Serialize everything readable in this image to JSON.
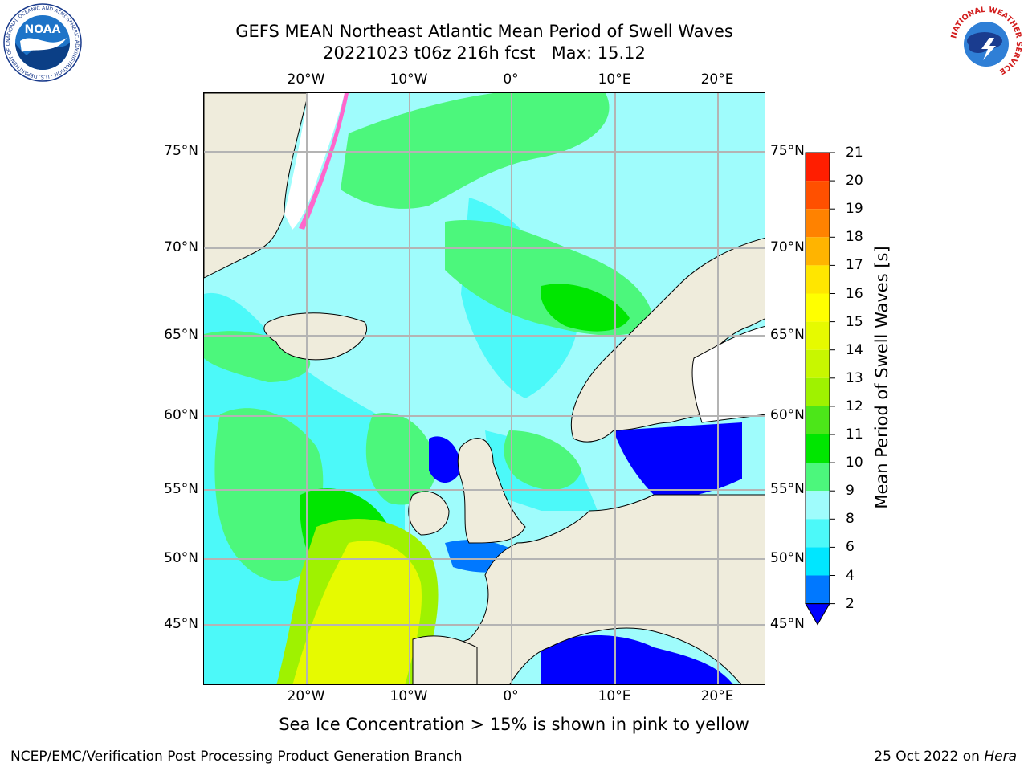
{
  "header": {
    "title_line1": "GEFS MEAN Northeast Atlantic Mean Period of Swell Waves",
    "title_line2": "20221023 t06z 216h fcst   Max: 15.12"
  },
  "map": {
    "lon_labels_top": [
      "20°W",
      "10°W",
      "0°",
      "10°E",
      "20°E"
    ],
    "lon_labels_bottom": [
      "20°W",
      "10°W",
      "0°",
      "10°E",
      "20°E"
    ],
    "lat_labels_left": [
      "75°N",
      "70°N",
      "65°N",
      "60°N",
      "55°N",
      "50°N",
      "45°N"
    ],
    "lat_labels_right": [
      "75°N",
      "70°N",
      "65°N",
      "60°N",
      "55°N",
      "50°N",
      "45°N"
    ],
    "colors": {
      "ocean_base": "#9ffcfc",
      "land": "#efecdc",
      "ice": "#ffffff",
      "grid": "#b4b4b4"
    }
  },
  "colorbar": {
    "label": "Mean Period of Swell Waves [s]",
    "ticks": [
      "2",
      "4",
      "6",
      "8",
      "9",
      "10",
      "11",
      "12",
      "13",
      "14",
      "15",
      "16",
      "17",
      "18",
      "19",
      "20",
      "21"
    ],
    "colors": [
      "#0078ff",
      "#00e6ff",
      "#4cf9f9",
      "#9ffcfc",
      "#4cf77c",
      "#00e600",
      "#4ce619",
      "#9ff200",
      "#c8f700",
      "#e6fa00",
      "#ffff00",
      "#ffe600",
      "#ffb400",
      "#ff8200",
      "#ff5000",
      "#ff1e00"
    ],
    "under_color": "#0000ff"
  },
  "footer": {
    "note": "Sea Ice Concentration > 15% is shown in pink to yellow",
    "credit_left": "NCEP/EMC/Verification Post Processing Product Generation Branch",
    "date": "25 Oct 2022 on",
    "host": "Hera"
  },
  "logos": {
    "noaa_text": "NOAA",
    "noaa_ring": "NATIONAL OCEANIC AND ATMOSPHERIC ADMINISTRATION · U.S. DEPARTMENT OF COMMERCE",
    "nws_ring": "NATIONAL WEATHER SERVICE"
  }
}
